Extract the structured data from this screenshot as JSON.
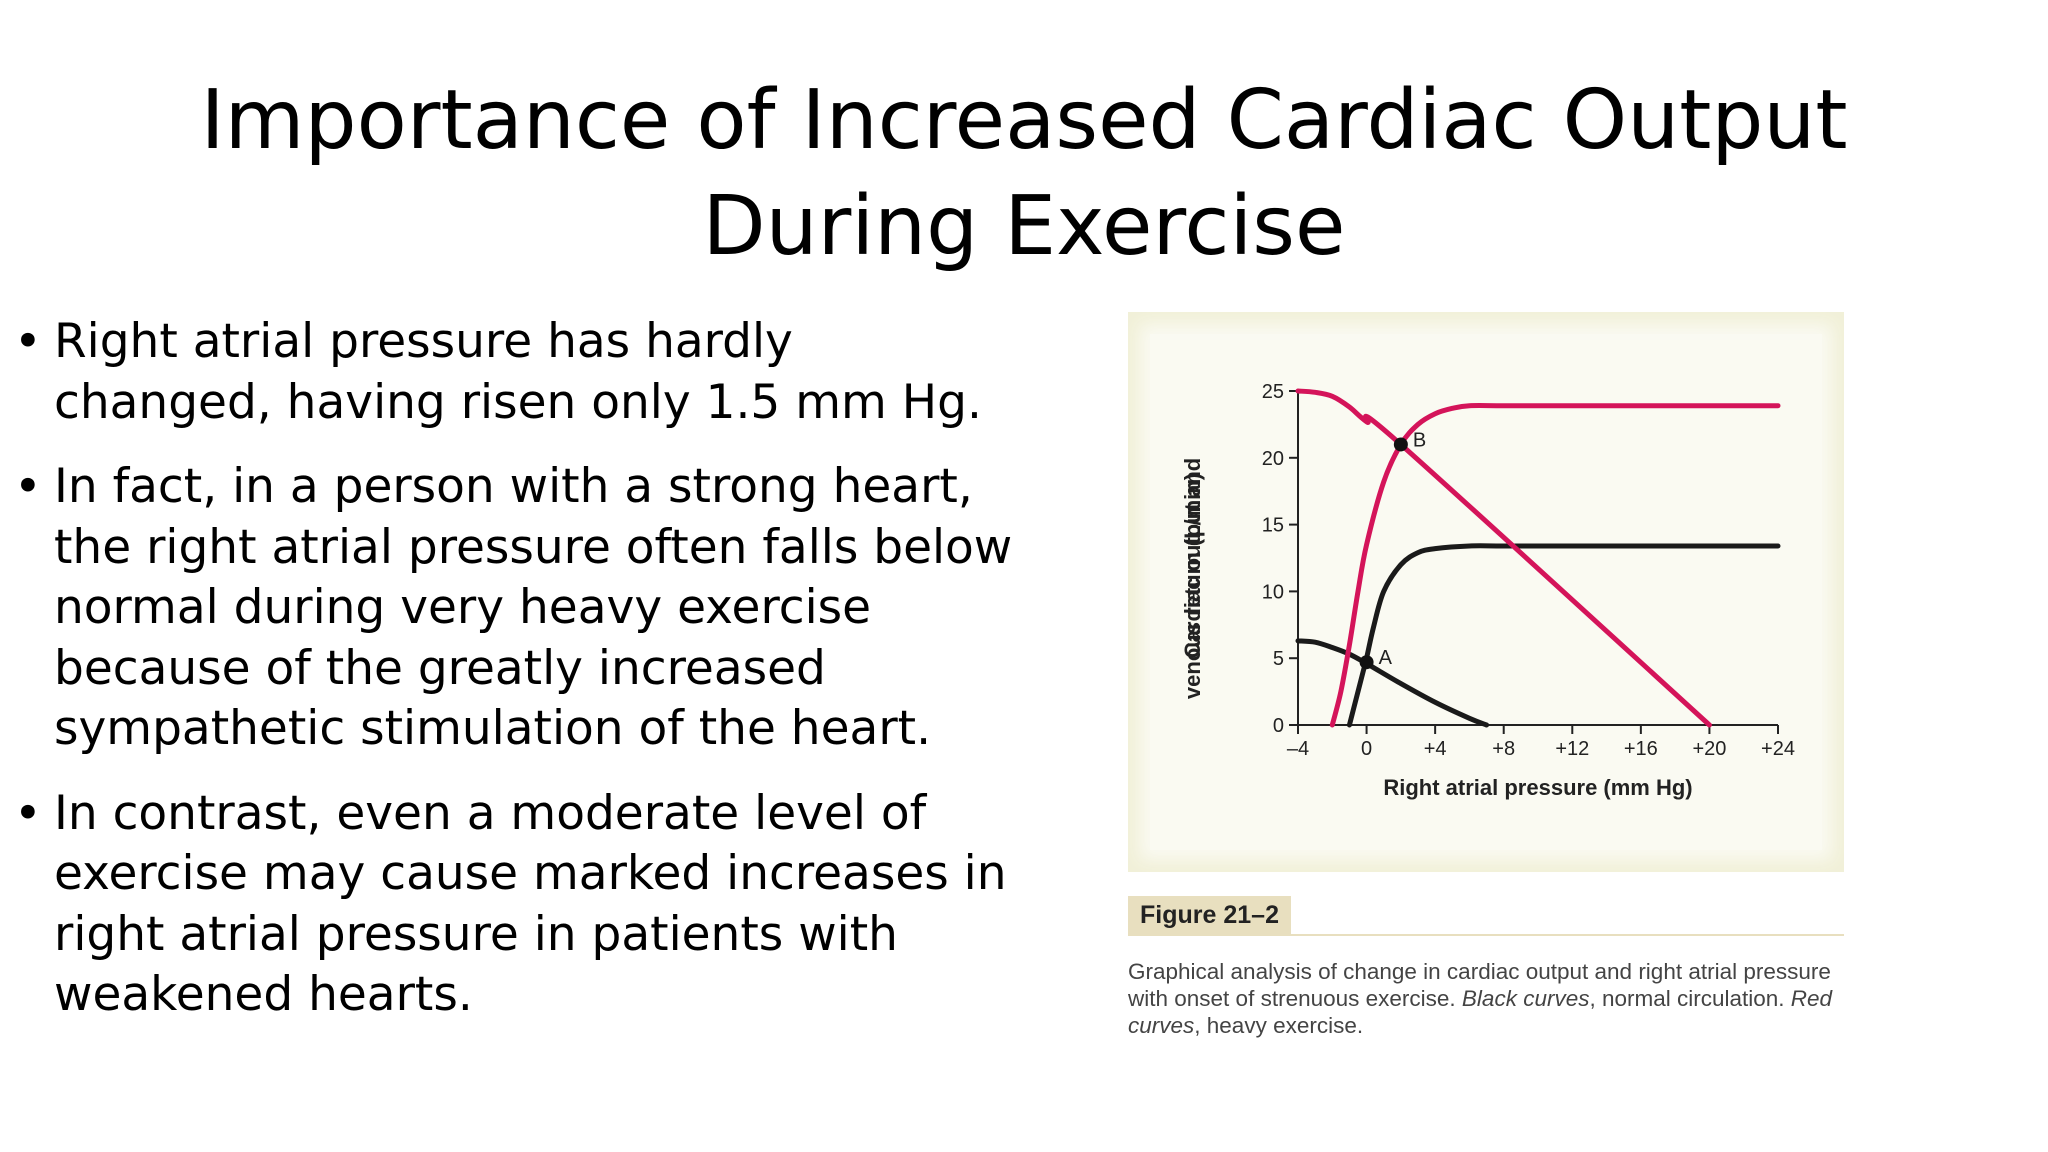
{
  "slide": {
    "title_line1": "Importance of Increased Cardiac Output",
    "title_line2": "During Exercise",
    "bullets": [
      "Right atrial pressure has hardly changed, having risen only 1.5 mm Hg.",
      "In fact, in a person with a strong heart, the right atrial pressure often falls below normal during very heavy exercise because of the greatly increased sympathetic stimulation of the heart.",
      "In contrast, even a moderate level of exercise may cause marked increases in right atrial pressure in patients with weakened hearts."
    ],
    "bullet_char": "•"
  },
  "figure": {
    "label": "Figure 21–2",
    "caption_1": "Graphical analysis of change in cardiac output and right atrial pressure with onset of strenuous exercise. ",
    "caption_2": "Black curves",
    "caption_3": ", normal circulation. ",
    "caption_4": "Red curves",
    "caption_5": ", heavy exercise."
  },
  "chart_data": {
    "type": "line",
    "title": "",
    "xlabel": "Right atrial pressure (mm Hg)",
    "ylabel": "Cardiac output and venous return (L/min)",
    "xlim": [
      -4,
      24
    ],
    "ylim": [
      0,
      25
    ],
    "x_ticks": [
      -4,
      0,
      4,
      8,
      12,
      16,
      20,
      24
    ],
    "x_tick_labels": [
      "–4",
      "0",
      "+4",
      "+8",
      "+12",
      "+16",
      "+20",
      "+24"
    ],
    "y_ticks": [
      0,
      5,
      10,
      15,
      20,
      25
    ],
    "y_tick_labels": [
      "0",
      "5",
      "10",
      "15",
      "20",
      "25"
    ],
    "grid": false,
    "colors": {
      "normal": "#1a1a1a",
      "exercise": "#d4145a"
    },
    "series": [
      {
        "group": "normal",
        "kind": "cardiac output",
        "x": [
          -1,
          -0.6,
          -0.2,
          0,
          0.4,
          1,
          2,
          3,
          4,
          6,
          8,
          12,
          16,
          20,
          24
        ],
        "y": [
          0,
          2,
          4,
          5,
          7.3,
          10,
          12,
          12.9,
          13.2,
          13.4,
          13.4,
          13.4,
          13.4,
          13.4,
          13.4
        ]
      },
      {
        "group": "normal",
        "kind": "venous return",
        "x": [
          -4,
          -3,
          -2,
          -1,
          0,
          2,
          4,
          6,
          7
        ],
        "y": [
          6.3,
          6.2,
          5.8,
          5.3,
          4.6,
          3.1,
          1.7,
          0.5,
          0
        ]
      },
      {
        "group": "exercise",
        "kind": "cardiac output",
        "x": [
          -2,
          -1.5,
          -1,
          -0.5,
          0,
          1,
          2,
          3,
          4,
          5,
          6,
          8,
          12,
          16,
          20,
          24
        ],
        "y": [
          0,
          2.5,
          6,
          10,
          13.5,
          18.2,
          21,
          22.5,
          23.3,
          23.7,
          23.9,
          23.9,
          23.9,
          23.9,
          23.9,
          23.9
        ]
      },
      {
        "group": "exercise",
        "kind": "venous return",
        "x": [
          -4,
          -3,
          -2,
          -1,
          0,
          2,
          20
        ],
        "y": [
          25,
          24.9,
          24.6,
          23.8,
          22.7,
          21,
          0
        ]
      }
    ],
    "points": [
      {
        "label": "A",
        "x": 0,
        "y": 4.7
      },
      {
        "label": "B",
        "x": 2,
        "y": 21
      }
    ]
  }
}
